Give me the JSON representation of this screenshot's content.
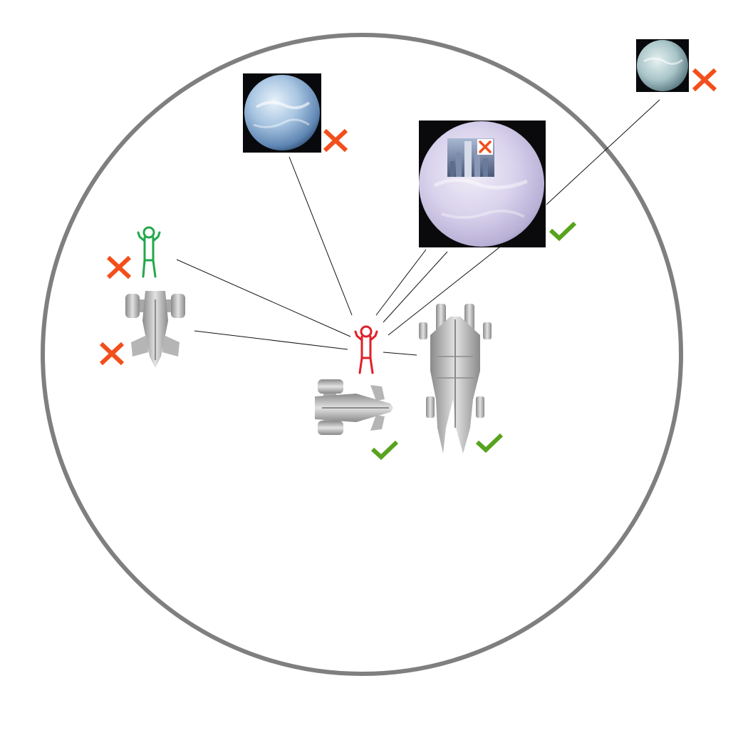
{
  "diagram": {
    "colors": {
      "range_circle": "#7f7f7f",
      "link_line": "#111111",
      "reject": "#f24f1c",
      "accept": "#58a31e",
      "self_figure": "#e0202a",
      "other_figure": "#22a84a",
      "ship_hull": "#b9b9b9"
    },
    "nodes": {
      "self_character": {
        "icon": "stick-figure-icon",
        "status": "origin"
      },
      "self_ship": {
        "icon": "small-ship-icon",
        "status": "accept"
      },
      "large_ship": {
        "icon": "large-ship-icon",
        "status": "accept"
      },
      "other_character": {
        "icon": "stick-figure-icon",
        "status": "reject"
      },
      "other_ship": {
        "icon": "small-ship-icon",
        "status": "reject"
      },
      "planet_near": {
        "icon": "ice-planet-icon",
        "status": "reject"
      },
      "planet_main": {
        "icon": "cloud-planet-icon",
        "status": "accept"
      },
      "planet_far": {
        "icon": "ice-planet-icon",
        "status": "reject"
      },
      "city": {
        "icon": "city-tower-icon",
        "status": "reject"
      }
    }
  }
}
